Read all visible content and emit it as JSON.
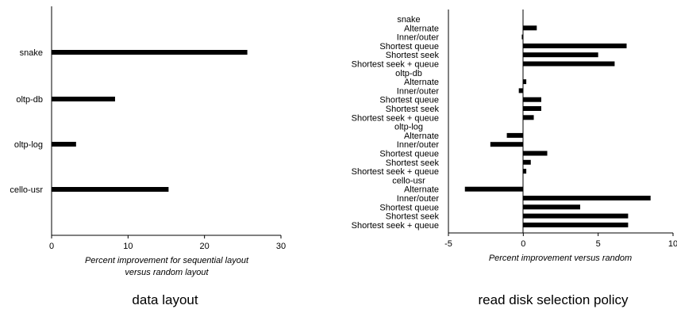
{
  "chart_data": [
    {
      "type": "bar",
      "orientation": "horizontal",
      "categories": [
        "snake",
        "oltp-db",
        "oltp-log",
        "cello-usr"
      ],
      "values": [
        25.6,
        8.3,
        3.2,
        15.3
      ],
      "xlabel_line1": "Percent improvement for sequential layout",
      "xlabel_line2": "versus random layout",
      "xlim": [
        0,
        30
      ],
      "xticks": [
        "0",
        "10",
        "20",
        "30"
      ],
      "caption": "data layout",
      "grid": false
    },
    {
      "type": "bar",
      "orientation": "horizontal",
      "groups": [
        {
          "name": "snake",
          "categories": [
            "Alternate",
            "Inner/outer",
            "Shortest queue",
            "Shortest seek",
            "Shortest seek + queue"
          ],
          "values": [
            0.9,
            -0.1,
            6.9,
            5.0,
            6.1
          ]
        },
        {
          "name": "oltp-db",
          "categories": [
            "Alternate",
            "Inner/outer",
            "Shortest queue",
            "Shortest seek",
            "Shortest seek + queue"
          ],
          "values": [
            0.2,
            -0.3,
            1.2,
            1.2,
            0.7
          ]
        },
        {
          "name": "oltp-log",
          "categories": [
            "Alternate",
            "Inner/outer",
            "Shortest queue",
            "Shortest seek",
            "Shortest seek + queue"
          ],
          "values": [
            -1.1,
            -2.2,
            1.6,
            0.5,
            0.2
          ]
        },
        {
          "name": "cello-usr",
          "categories": [
            "Alternate",
            "Inner/outer",
            "Shortest queue",
            "Shortest seek",
            "Shortest seek + queue"
          ],
          "values": [
            -3.9,
            8.5,
            3.8,
            7.0,
            7.0
          ]
        }
      ],
      "xlabel": "Percent improvement versus random",
      "xlim": [
        -5,
        10
      ],
      "xticks": [
        "-5",
        "0",
        "5",
        "10"
      ],
      "caption": "read disk selection policy",
      "grid": false
    }
  ]
}
